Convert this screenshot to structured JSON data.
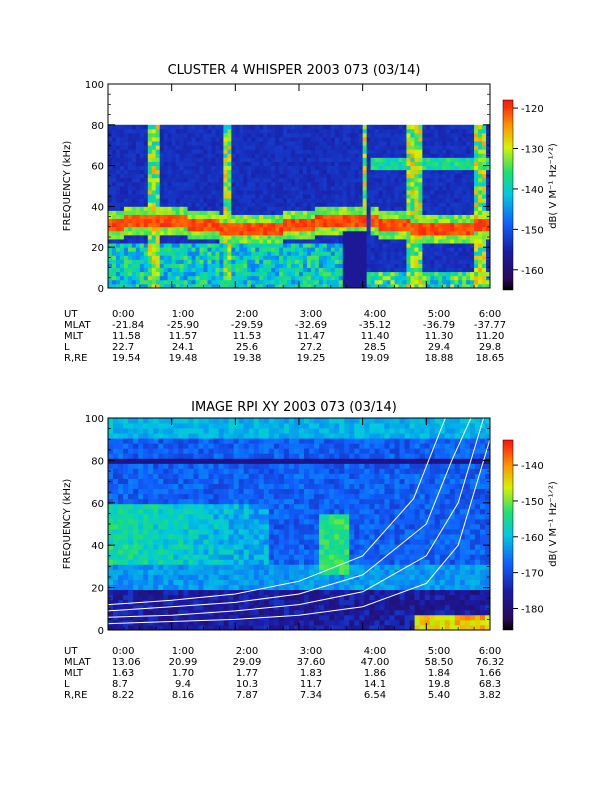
{
  "panels": [
    {
      "title": "CLUSTER 4 WHISPER 2003 073 (03/14)",
      "ylabel": "FREQUENCY (kHz)",
      "colorbar_label": "dB( V M⁻¹ Hz⁻¹ᐟ²)",
      "colorbar_ticks": [
        "-120",
        "-130",
        "-140",
        "-150",
        "-160"
      ],
      "y_ticks": [
        "0",
        "20",
        "40",
        "60",
        "80",
        "100"
      ],
      "ephemeris": {
        "rows": [
          {
            "label": "UT",
            "values": [
              "0:00",
              "1:00",
              "2:00",
              "3:00",
              "4:00",
              "5:00",
              "6:00"
            ]
          },
          {
            "label": "MLAT",
            "values": [
              "-21.84",
              "-25.90",
              "-29.59",
              "-32.69",
              "-35.12",
              "-36.79",
              "-37.77"
            ]
          },
          {
            "label": "MLT",
            "values": [
              "11.58",
              "11.57",
              "11.53",
              "11.47",
              "11.40",
              "11.30",
              "11.20"
            ]
          },
          {
            "label": "L",
            "values": [
              "22.7",
              "24.1",
              "25.6",
              "27.2",
              "28.5",
              "29.4",
              "29.8"
            ]
          },
          {
            "label": "R,RE",
            "values": [
              "19.54",
              "19.48",
              "19.38",
              "19.25",
              "19.09",
              "18.88",
              "18.65"
            ]
          }
        ]
      }
    },
    {
      "title": "IMAGE RPI XY 2003 073 (03/14)",
      "ylabel": "FREQUENCY (kHz)",
      "colorbar_label": "dB( V M⁻¹ Hz⁻¹ᐟ²)",
      "colorbar_ticks": [
        "-140",
        "-150",
        "-160",
        "-170",
        "-180"
      ],
      "y_ticks": [
        "0",
        "20",
        "40",
        "60",
        "80",
        "100"
      ],
      "ephemeris": {
        "rows": [
          {
            "label": "UT",
            "values": [
              "0:00",
              "1:00",
              "2:00",
              "3:00",
              "4:00",
              "5:00",
              "6:00"
            ]
          },
          {
            "label": "MLAT",
            "values": [
              "13.06",
              "20.99",
              "29.09",
              "37.60",
              "47.00",
              "58.50",
              "76.32"
            ]
          },
          {
            "label": "MLT",
            "values": [
              "1.63",
              "1.70",
              "1.77",
              "1.83",
              "1.86",
              "1.84",
              "1.66"
            ]
          },
          {
            "label": "L",
            "values": [
              "8.7",
              "9.4",
              "10.3",
              "11.7",
              "14.1",
              "19.8",
              "68.3"
            ]
          },
          {
            "label": "R,RE",
            "values": [
              "8.22",
              "8.16",
              "7.87",
              "7.34",
              "6.54",
              "5.40",
              "3.82"
            ]
          }
        ]
      }
    }
  ],
  "chart_data": [
    {
      "type": "heatmap",
      "title": "CLUSTER 4 WHISPER 2003 073 (03/14)",
      "xlabel": "UT",
      "ylabel": "FREQUENCY (kHz)",
      "xlim": [
        0,
        6
      ],
      "ylim": [
        0,
        100
      ],
      "data_ylim": [
        0,
        80
      ],
      "x_tick_hours": [
        0,
        1,
        2,
        3,
        4,
        5,
        6
      ],
      "y_ticks": [
        0,
        20,
        40,
        60,
        80,
        100
      ],
      "colorbar": {
        "label": "dB( V M-1 Hz-1/2)",
        "range": [
          -165,
          -118
        ],
        "ticks": [
          -120,
          -130,
          -140,
          -150,
          -160
        ]
      },
      "features": [
        {
          "name": "band",
          "from_hour": 0,
          "to_hour": 6,
          "freq_khz": 30
        },
        {
          "name": "band",
          "from_hour": 4.1,
          "to_hour": 6,
          "freq_khz": 61
        }
      ]
    },
    {
      "type": "heatmap",
      "title": "IMAGE RPI XY 2003 073 (03/14)",
      "xlabel": "UT",
      "ylabel": "FREQUENCY (kHz)",
      "xlim": [
        0,
        6
      ],
      "ylim": [
        0,
        100
      ],
      "x_tick_hours": [
        0,
        1,
        2,
        3,
        4,
        5,
        6
      ],
      "y_ticks": [
        0,
        20,
        40,
        60,
        80,
        100
      ],
      "colorbar": {
        "label": "dB( V M-1 Hz-1/2)",
        "range": [
          -186,
          -133
        ],
        "ticks": [
          -140,
          -150,
          -160,
          -170,
          -180
        ]
      },
      "curves_khz": [
        [
          [
            0,
            3
          ],
          [
            1,
            4
          ],
          [
            2,
            5
          ],
          [
            3,
            7
          ],
          [
            4,
            11
          ],
          [
            5,
            22
          ],
          [
            5.5,
            40
          ],
          [
            6,
            90
          ]
        ],
        [
          [
            0,
            6
          ],
          [
            1,
            7
          ],
          [
            2,
            9
          ],
          [
            3,
            12
          ],
          [
            4,
            18
          ],
          [
            5,
            35
          ],
          [
            5.5,
            60
          ],
          [
            5.9,
            100
          ]
        ],
        [
          [
            0,
            9
          ],
          [
            1,
            11
          ],
          [
            2,
            13
          ],
          [
            3,
            17
          ],
          [
            4,
            26
          ],
          [
            5,
            50
          ],
          [
            5.4,
            80
          ],
          [
            5.7,
            100
          ]
        ],
        [
          [
            0,
            12
          ],
          [
            1,
            14
          ],
          [
            2,
            17
          ],
          [
            3,
            23
          ],
          [
            4,
            35
          ],
          [
            4.8,
            62
          ],
          [
            5.3,
            100
          ]
        ]
      ]
    }
  ]
}
